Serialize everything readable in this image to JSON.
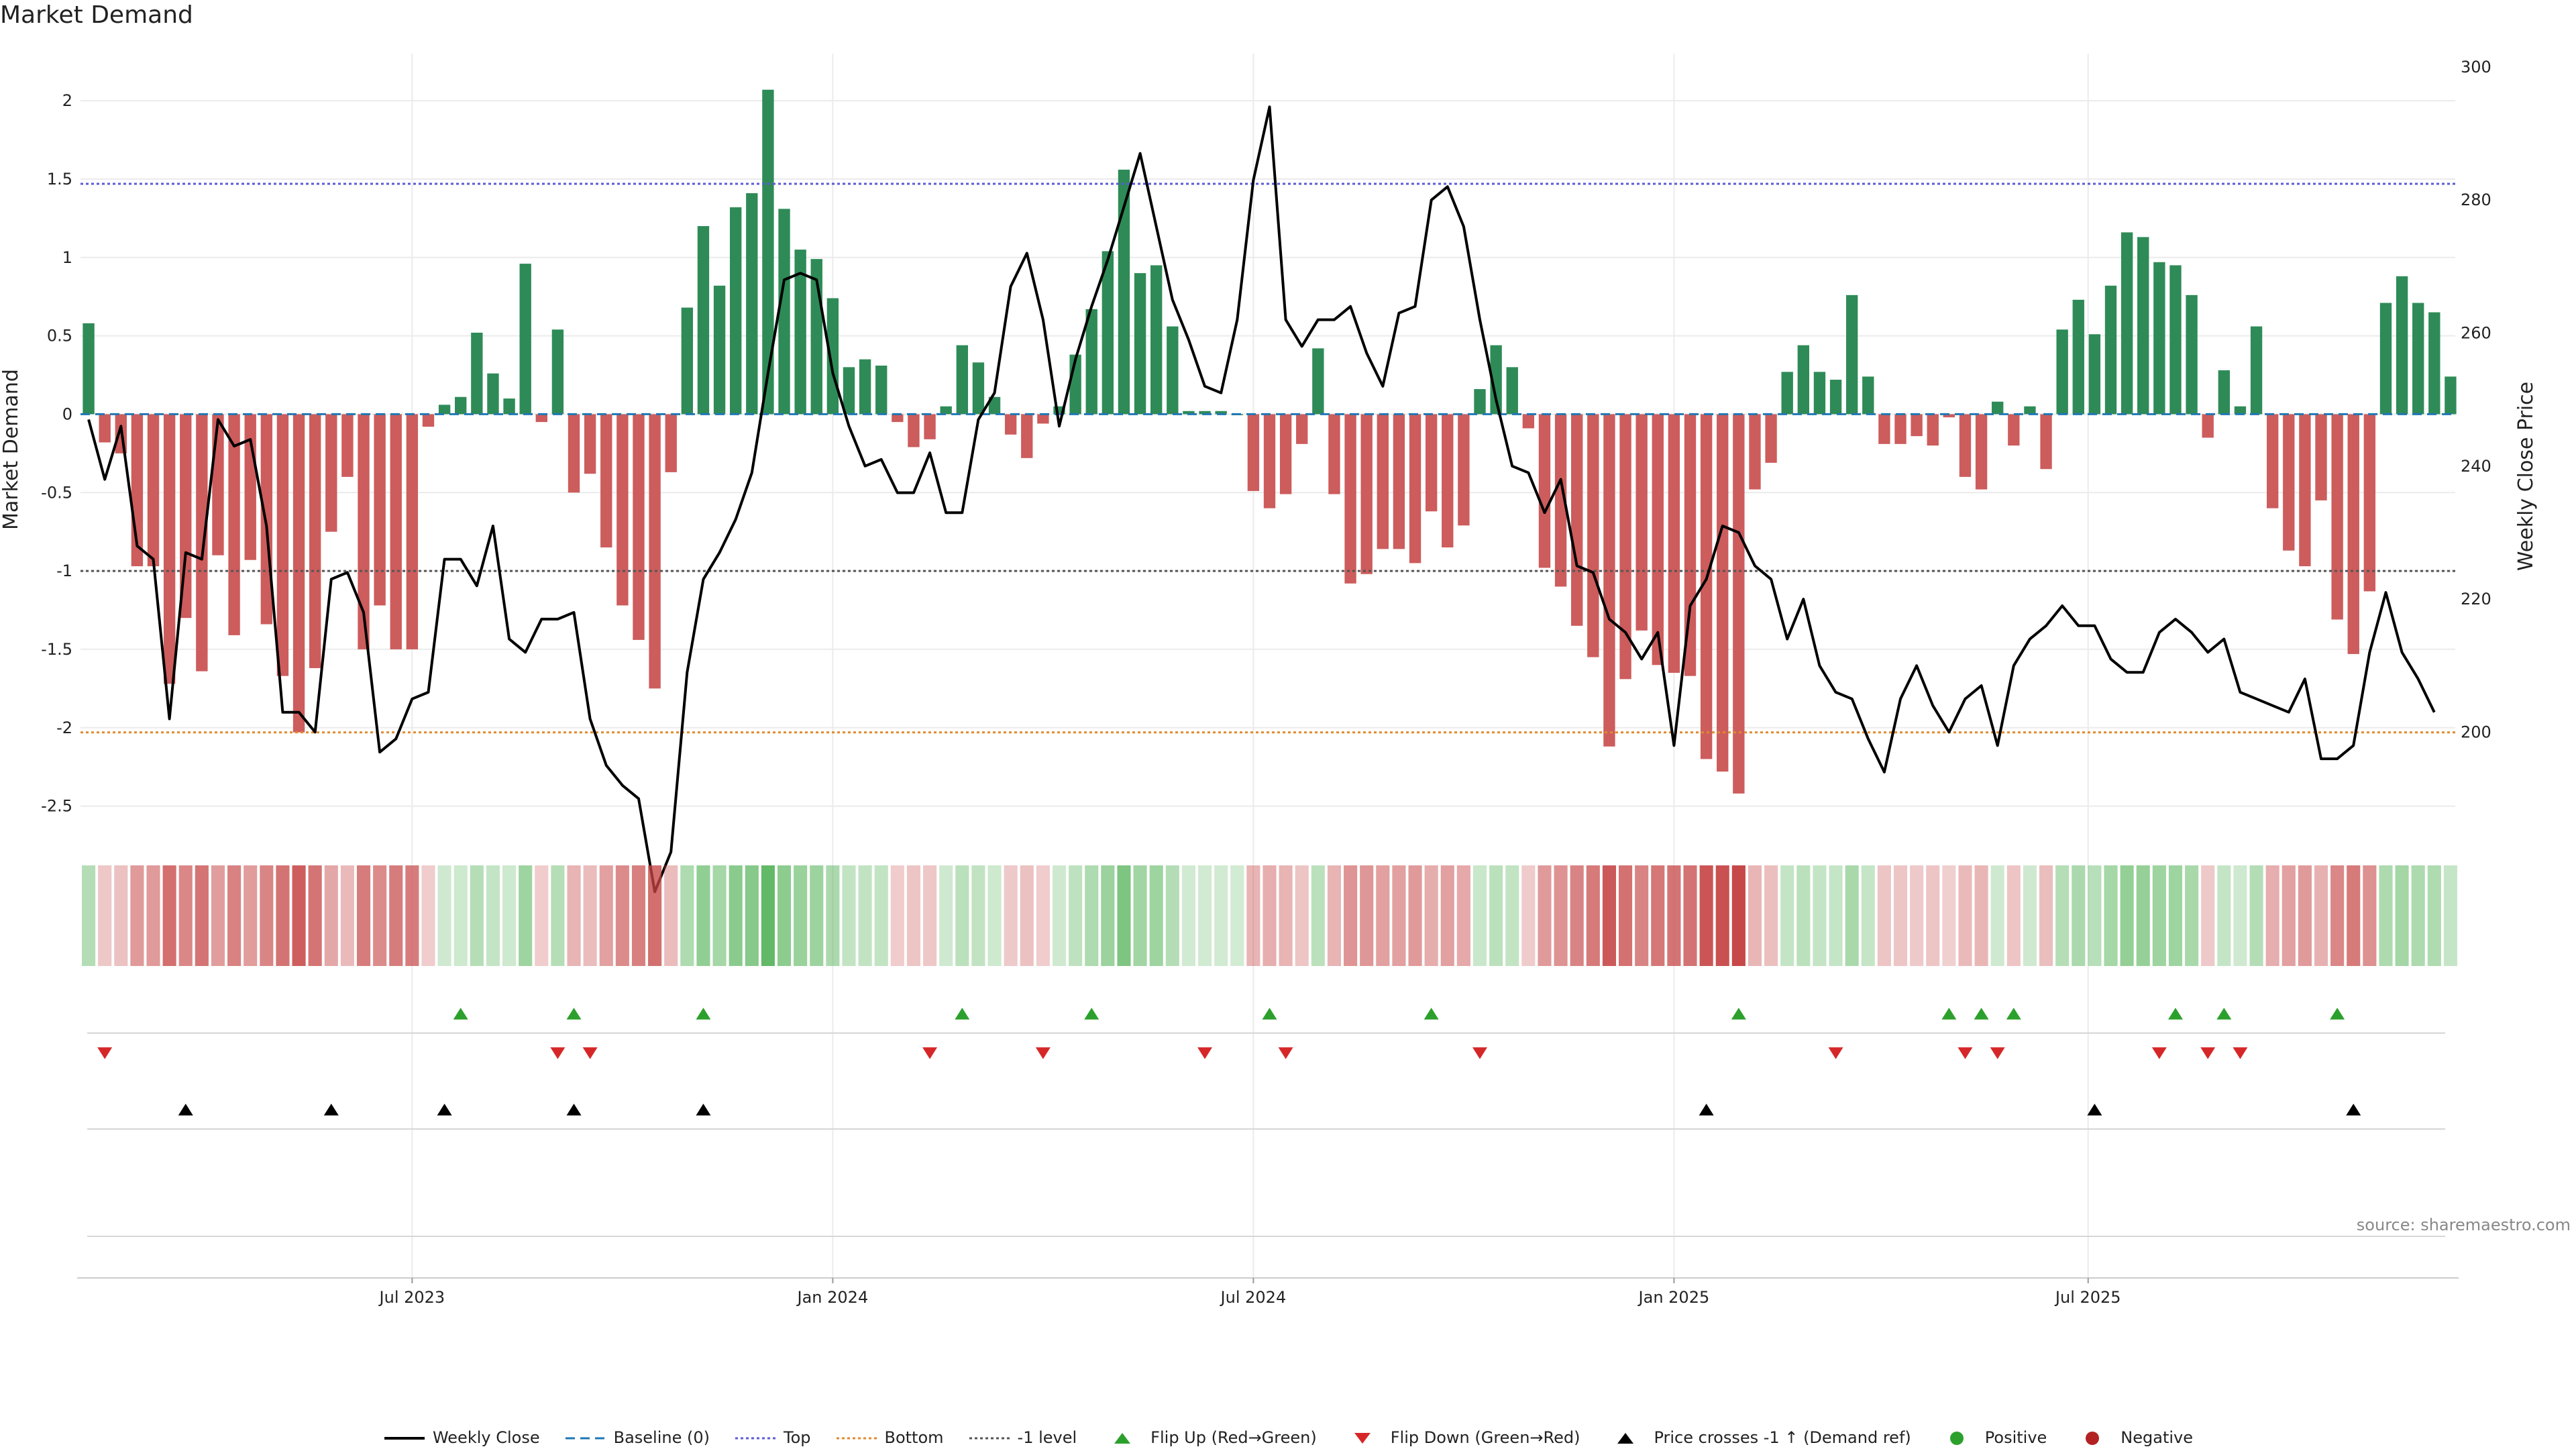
{
  "title": "Market Demand",
  "source": "source: sharemaestro.com",
  "colors": {
    "positive": "#2e8b57",
    "negative": "#cd5c5c",
    "price": "#000000",
    "baseline": "#1f77b4",
    "top": "#5b5bd6",
    "bottom": "#e08a2e",
    "minus1": "#555555",
    "flip_up": "#2ca02c",
    "flip_down": "#d62728",
    "cross": "#000000",
    "legend_positive": "#2ca02c",
    "legend_negative": "#b22222"
  },
  "legend": [
    {
      "label": "Weekly Close",
      "kind": "line",
      "color": "#000000"
    },
    {
      "label": "Baseline (0)",
      "kind": "dash",
      "color": "#1f77b4"
    },
    {
      "label": "Top",
      "kind": "dot",
      "color": "#5b5bd6"
    },
    {
      "label": "Bottom",
      "kind": "dot",
      "color": "#e08a2e"
    },
    {
      "label": "-1 level",
      "kind": "dot",
      "color": "#555555"
    },
    {
      "label": "Flip Up (Red→Green)",
      "kind": "tri-up",
      "color": "#2ca02c"
    },
    {
      "label": "Flip Down (Green→Red)",
      "kind": "tri-down",
      "color": "#d62728"
    },
    {
      "label": "Price crosses -1 ↑ (Demand ref)",
      "kind": "tri-up",
      "color": "#000000"
    },
    {
      "label": "Positive",
      "kind": "circle",
      "color": "#2ca02c"
    },
    {
      "label": "Negative",
      "kind": "circle",
      "color": "#b22222"
    }
  ],
  "chart_data": {
    "type": "bar",
    "title": "Market Demand",
    "ylabel": "Market Demand",
    "y2label": "Weekly Close Price",
    "ylim": [
      -2.75,
      2.3
    ],
    "y2lim": [
      183,
      302
    ],
    "yticks": [
      -2.5,
      -2,
      -1.5,
      -1,
      -0.5,
      0,
      0.5,
      1,
      1.5,
      2
    ],
    "y2ticks": [
      200,
      220,
      240,
      260,
      280,
      300
    ],
    "x_start_week": 0,
    "x_ticks": [
      {
        "label": "Jul 2023",
        "week": 20
      },
      {
        "label": "Jan 2024",
        "week": 46
      },
      {
        "label": "Jul 2024",
        "week": 72
      },
      {
        "label": "Jan 2025",
        "week": 98
      },
      {
        "label": "Jul 2025",
        "week": 123.6
      }
    ],
    "reference_lines": {
      "baseline": 0,
      "top": 1.47,
      "bottom": -2.03,
      "minus1": -1
    },
    "demand": [
      0.58,
      -0.18,
      -0.25,
      -0.97,
      -0.97,
      -1.72,
      -1.3,
      -1.64,
      -0.9,
      -1.41,
      -0.93,
      -1.34,
      -1.67,
      -2.03,
      -1.62,
      -0.75,
      -0.4,
      -1.5,
      -1.22,
      -1.5,
      -1.5,
      -0.08,
      0.06,
      0.11,
      0.52,
      0.26,
      0.1,
      0.96,
      -0.05,
      0.54,
      -0.5,
      -0.38,
      -0.85,
      -1.22,
      -1.44,
      -1.75,
      -0.37,
      0.68,
      1.2,
      0.82,
      1.32,
      1.41,
      2.07,
      1.31,
      1.05,
      0.99,
      0.74,
      0.3,
      0.35,
      0.31,
      -0.05,
      -0.21,
      -0.16,
      0.05,
      0.44,
      0.33,
      0.11,
      -0.13,
      -0.28,
      -0.06,
      0.05,
      0.38,
      0.67,
      1.04,
      1.56,
      0.9,
      0.95,
      0.56,
      0.02,
      0.02,
      0.02,
      0.0,
      -0.49,
      -0.6,
      -0.51,
      -0.19,
      0.42,
      -0.51,
      -1.08,
      -1.02,
      -0.86,
      -0.86,
      -0.95,
      -0.62,
      -0.85,
      -0.71,
      0.16,
      0.44,
      0.3,
      -0.09,
      -0.98,
      -1.1,
      -1.35,
      -1.55,
      -2.12,
      -1.69,
      -1.38,
      -1.6,
      -1.65,
      -1.67,
      -2.2,
      -2.28,
      -2.42,
      -0.48,
      -0.31,
      0.27,
      0.44,
      0.27,
      0.22,
      0.76,
      0.24,
      -0.19,
      -0.19,
      -0.14,
      -0.2,
      -0.02,
      -0.4,
      -0.48,
      0.08,
      -0.2,
      0.05,
      -0.35,
      0.54,
      0.73,
      0.51,
      0.82,
      1.16,
      1.13,
      0.97,
      0.95,
      0.76,
      -0.15,
      0.28,
      0.05,
      0.56,
      -0.6,
      -0.87,
      -0.97,
      -0.55,
      -1.31,
      -1.53,
      -1.13,
      0.71,
      0.88,
      0.71,
      0.65,
      0.24
    ],
    "weekly_close": [
      247,
      238,
      246,
      228,
      226,
      202,
      227,
      226,
      247,
      243,
      244,
      231,
      203,
      203,
      200,
      223,
      224,
      218,
      197,
      199,
      205,
      206,
      226,
      226,
      222,
      231,
      214,
      212,
      217,
      217,
      218,
      202,
      195,
      192,
      190,
      176,
      182,
      209,
      223,
      227,
      232,
      239,
      254,
      268,
      269,
      268,
      254,
      246,
      240,
      241,
      236,
      236,
      242,
      233,
      233,
      247,
      251,
      267,
      272,
      262,
      246,
      256,
      264,
      271,
      279,
      287,
      276,
      265,
      259,
      252,
      251,
      262,
      283,
      294,
      262,
      258,
      262,
      262,
      264,
      257,
      252,
      263,
      264,
      280,
      282,
      276,
      262,
      250,
      240,
      239,
      233,
      238,
      225,
      224,
      217,
      215,
      211,
      215,
      198,
      219,
      223,
      231,
      230,
      225,
      223,
      214,
      220,
      210,
      206,
      205,
      199,
      194,
      205,
      210,
      204,
      200,
      205,
      207,
      198,
      210,
      214,
      216,
      219,
      216,
      216,
      211,
      209,
      209,
      215,
      217,
      215,
      212,
      214,
      206,
      205,
      204,
      203,
      208,
      196,
      196,
      198,
      212,
      221,
      212,
      208,
      203
    ]
  },
  "flip_up_weeks": [
    23,
    30,
    38,
    54,
    62,
    73,
    83,
    102,
    115,
    117,
    119,
    129,
    132,
    139
  ],
  "flip_down_weeks": [
    1,
    29,
    31,
    52,
    59,
    69,
    74,
    86,
    108,
    116,
    118,
    128,
    131,
    133
  ],
  "cross_up_weeks": [
    6,
    15,
    22,
    30,
    38,
    100,
    124,
    140
  ]
}
